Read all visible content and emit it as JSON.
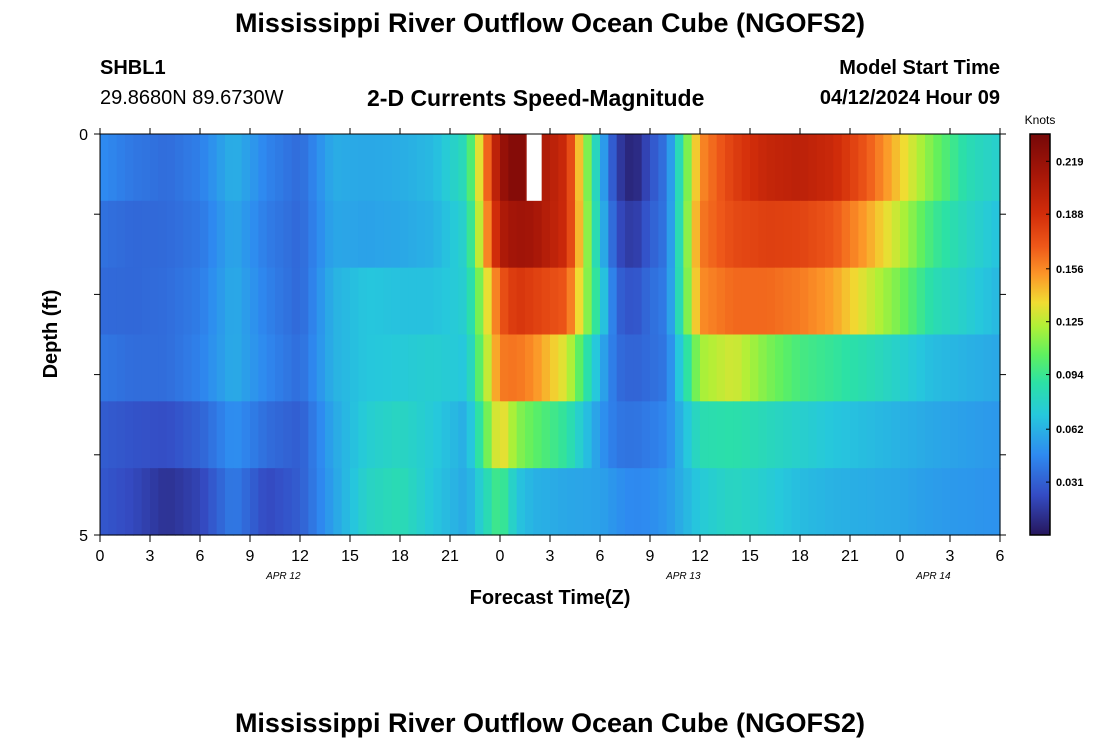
{
  "header": {
    "title": "Mississippi River Outflow Ocean Cube (NGOFS2)",
    "station": "SHBL1",
    "coords": "29.8680N  89.6730W",
    "subtitle": "2-D Currents Speed-Magnitude",
    "model_start_label": "Model Start Time",
    "model_start_value": "04/12/2024 Hour 09"
  },
  "footer": {
    "title": "Mississippi River Outflow Ocean Cube (NGOFS2)"
  },
  "chart_data": {
    "type": "heatmap",
    "title": "2-D Currents Speed-Magnitude",
    "xlabel": "Forecast Time(Z)",
    "ylabel": "Depth (ft)",
    "x_tick_labels": [
      "0",
      "3",
      "6",
      "9",
      "12",
      "15",
      "18",
      "21",
      "0",
      "3",
      "6",
      "9",
      "12",
      "15",
      "18",
      "21",
      "0",
      "3",
      "6"
    ],
    "date_labels": [
      {
        "label": "APR 12",
        "hour": 11
      },
      {
        "label": "APR 13",
        "hour": 35
      },
      {
        "label": "APR 14",
        "hour": 50
      }
    ],
    "x_range_hours": [
      0,
      54
    ],
    "y_tick_labels": [
      "0",
      "5"
    ],
    "ylim": [
      0,
      5
    ],
    "colorbar": {
      "unit": "Knots",
      "ticks": [
        "0.219",
        "0.188",
        "0.156",
        "0.125",
        "0.094",
        "0.062",
        "0.031"
      ],
      "tick_values": [
        0.219,
        0.188,
        0.156,
        0.125,
        0.094,
        0.062,
        0.031
      ],
      "min": 0.0,
      "max": 0.235
    },
    "hours": [
      0,
      2,
      4,
      6,
      8,
      10,
      12,
      14,
      16,
      18,
      20,
      22,
      24,
      25,
      26,
      28,
      30,
      31,
      32,
      33,
      34,
      36,
      38,
      40,
      42,
      44,
      46,
      48,
      50,
      52,
      54
    ],
    "rows": [
      {
        "layer": 1,
        "values": [
          0.048,
          0.04,
          0.036,
          0.043,
          0.062,
          0.045,
          0.035,
          0.06,
          0.058,
          0.06,
          0.065,
          0.085,
          0.215,
          0.232,
          0.215,
          0.19,
          0.065,
          0.018,
          0.004,
          0.025,
          0.04,
          0.155,
          0.18,
          0.195,
          0.2,
          0.192,
          0.17,
          0.14,
          0.11,
          0.085,
          0.075
        ]
      },
      {
        "layer": 2,
        "values": [
          0.038,
          0.034,
          0.035,
          0.04,
          0.058,
          0.042,
          0.034,
          0.058,
          0.056,
          0.058,
          0.062,
          0.078,
          0.205,
          0.215,
          0.212,
          0.19,
          0.07,
          0.024,
          0.014,
          0.03,
          0.04,
          0.16,
          0.175,
          0.18,
          0.178,
          0.17,
          0.15,
          0.125,
          0.095,
          0.08,
          0.068
        ]
      },
      {
        "layer": 3,
        "values": [
          0.035,
          0.034,
          0.036,
          0.042,
          0.06,
          0.044,
          0.034,
          0.062,
          0.07,
          0.068,
          0.068,
          0.075,
          0.17,
          0.185,
          0.18,
          0.17,
          0.08,
          0.032,
          0.025,
          0.036,
          0.042,
          0.155,
          0.165,
          0.165,
          0.16,
          0.15,
          0.13,
          0.11,
          0.085,
          0.075,
          0.064
        ]
      },
      {
        "layer": 4,
        "values": [
          0.04,
          0.036,
          0.036,
          0.044,
          0.06,
          0.046,
          0.036,
          0.062,
          0.07,
          0.072,
          0.075,
          0.07,
          0.16,
          0.162,
          0.155,
          0.13,
          0.062,
          0.036,
          0.032,
          0.036,
          0.04,
          0.12,
          0.13,
          0.112,
          0.098,
          0.092,
          0.085,
          0.076,
          0.066,
          0.062,
          0.058
        ]
      },
      {
        "layer": 5,
        "values": [
          0.03,
          0.026,
          0.024,
          0.032,
          0.05,
          0.036,
          0.03,
          0.058,
          0.074,
          0.08,
          0.072,
          0.06,
          0.14,
          0.115,
          0.105,
          0.09,
          0.052,
          0.04,
          0.038,
          0.042,
          0.046,
          0.085,
          0.088,
          0.082,
          0.076,
          0.07,
          0.066,
          0.062,
          0.058,
          0.055,
          0.052
        ]
      },
      {
        "layer": 6,
        "values": [
          0.028,
          0.022,
          0.012,
          0.02,
          0.042,
          0.022,
          0.03,
          0.056,
          0.078,
          0.085,
          0.07,
          0.058,
          0.1,
          0.07,
          0.062,
          0.058,
          0.056,
          0.05,
          0.046,
          0.048,
          0.052,
          0.072,
          0.08,
          0.074,
          0.066,
          0.062,
          0.06,
          0.058,
          0.054,
          0.052,
          0.05
        ]
      }
    ],
    "missing_cells": [
      {
        "layer": 1,
        "hour_start": 25.6,
        "hour_end": 26.5
      }
    ],
    "grid": false,
    "legend": "colorbar-right"
  }
}
